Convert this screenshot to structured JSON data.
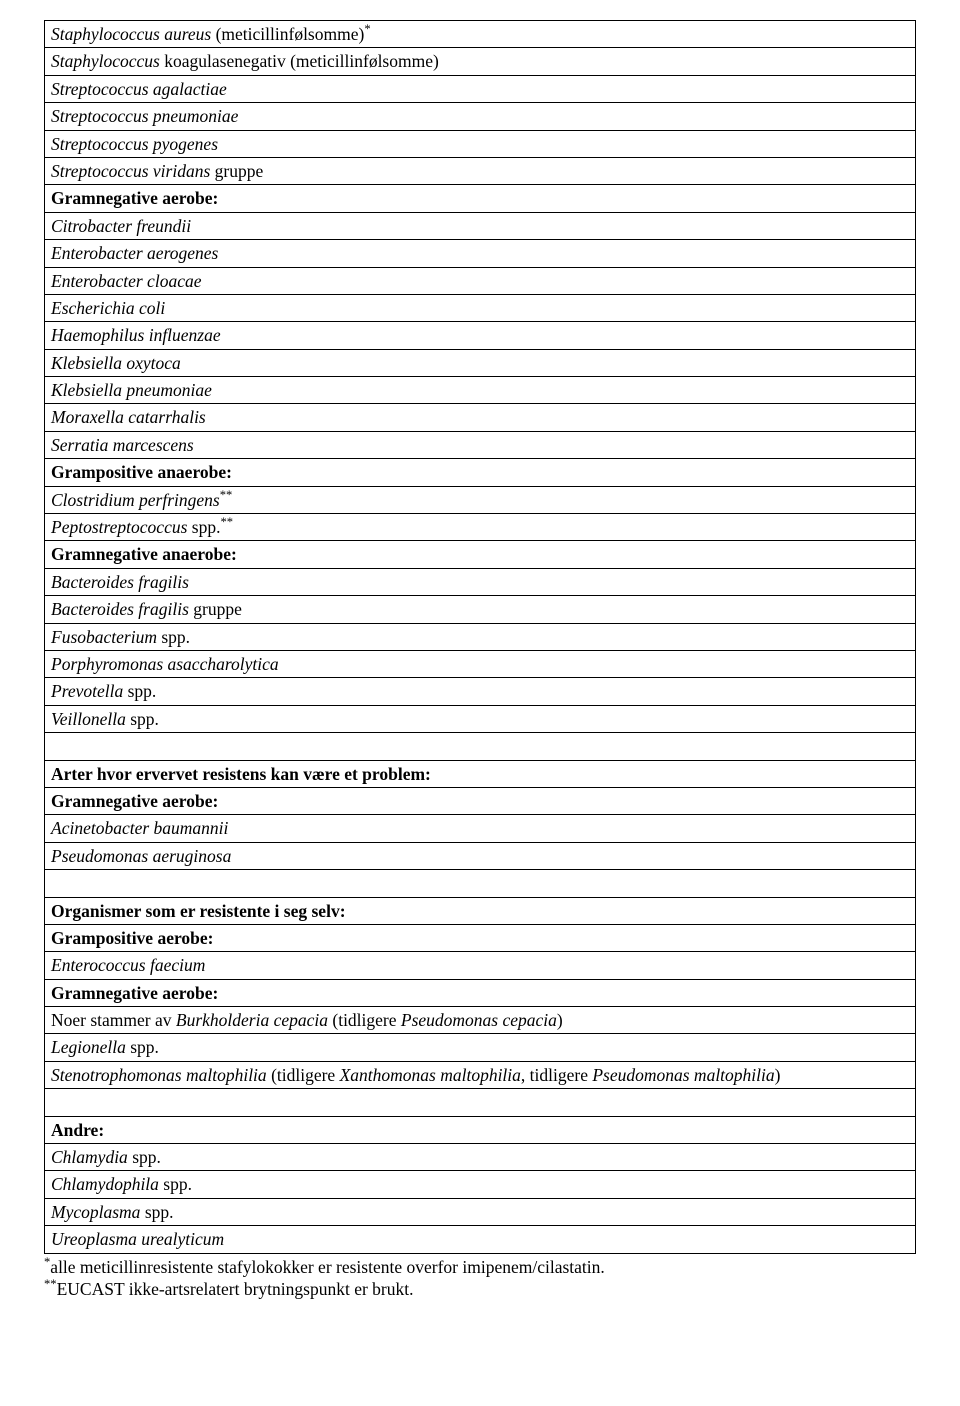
{
  "table": {
    "rows": [
      {
        "type": "indent",
        "segments": [
          {
            "t": "Staphylococcus aureus ",
            "i": true
          },
          {
            "t": "(meticillinfølsomme)"
          },
          {
            "t": "*",
            "sup": true
          }
        ]
      },
      {
        "type": "indent",
        "segments": [
          {
            "t": "Staphylococcus ",
            "i": true
          },
          {
            "t": "koagulasenegativ (meticillinfølsomme)"
          }
        ]
      },
      {
        "type": "indent",
        "segments": [
          {
            "t": "Streptococcus agalactiae",
            "i": true
          }
        ]
      },
      {
        "type": "indent",
        "segments": [
          {
            "t": "Streptococcus pneumoniae",
            "i": true
          }
        ]
      },
      {
        "type": "indent",
        "segments": [
          {
            "t": "Streptococcus pyogenes",
            "i": true
          }
        ]
      },
      {
        "type": "indent",
        "segments": [
          {
            "t": "Streptococcus viridans ",
            "i": true
          },
          {
            "t": "gruppe"
          }
        ]
      },
      {
        "type": "header",
        "segments": [
          {
            "t": "Gramnegative aerobe:"
          }
        ]
      },
      {
        "type": "indent",
        "segments": [
          {
            "t": "Citrobacter freundii",
            "i": true
          }
        ]
      },
      {
        "type": "indent",
        "segments": [
          {
            "t": "Enterobacter aerogenes",
            "i": true
          }
        ]
      },
      {
        "type": "indent",
        "segments": [
          {
            "t": "Enterobacter cloacae",
            "i": true
          }
        ]
      },
      {
        "type": "indent",
        "segments": [
          {
            "t": "Escherichia coli",
            "i": true
          }
        ]
      },
      {
        "type": "indent",
        "segments": [
          {
            "t": "Haemophilus influenzae",
            "i": true
          }
        ]
      },
      {
        "type": "indent",
        "segments": [
          {
            "t": "Klebsiella oxytoca",
            "i": true
          }
        ]
      },
      {
        "type": "indent",
        "segments": [
          {
            "t": "Klebsiella pneumoniae",
            "i": true
          }
        ]
      },
      {
        "type": "indent",
        "segments": [
          {
            "t": "Moraxella catarrhalis",
            "i": true
          }
        ]
      },
      {
        "type": "indent",
        "segments": [
          {
            "t": "Serratia marcescens",
            "i": true
          }
        ]
      },
      {
        "type": "header",
        "segments": [
          {
            "t": "Grampositive anaerobe:"
          }
        ]
      },
      {
        "type": "indent",
        "segments": [
          {
            "t": "Clostridium perfringens",
            "i": true
          },
          {
            "t": "**",
            "sup": true
          }
        ]
      },
      {
        "type": "indent",
        "segments": [
          {
            "t": "Peptostreptococcus ",
            "i": true
          },
          {
            "t": "spp."
          },
          {
            "t": "**",
            "sup": true
          }
        ]
      },
      {
        "type": "header",
        "segments": [
          {
            "t": "Gramnegative anaerobe:"
          }
        ]
      },
      {
        "type": "indent",
        "segments": [
          {
            "t": "Bacteroides fragilis",
            "i": true
          }
        ]
      },
      {
        "type": "indent",
        "segments": [
          {
            "t": "Bacteroides fragilis ",
            "i": true
          },
          {
            "t": "gruppe"
          }
        ]
      },
      {
        "type": "indent",
        "segments": [
          {
            "t": "Fusobacterium ",
            "i": true
          },
          {
            "t": "spp."
          }
        ]
      },
      {
        "type": "indent",
        "segments": [
          {
            "t": "Porphyromonas asaccharolytica",
            "i": true
          }
        ]
      },
      {
        "type": "indent",
        "segments": [
          {
            "t": "Prevotella ",
            "i": true
          },
          {
            "t": "spp."
          }
        ]
      },
      {
        "type": "indent",
        "segments": [
          {
            "t": "Veillonella ",
            "i": true
          },
          {
            "t": "spp."
          }
        ]
      },
      {
        "type": "spacer"
      },
      {
        "type": "header",
        "segments": [
          {
            "t": "Arter hvor ervervet resistens kan være et problem:"
          }
        ]
      },
      {
        "type": "header",
        "segments": [
          {
            "t": "Gramnegative aerobe:"
          }
        ]
      },
      {
        "type": "indent",
        "segments": [
          {
            "t": "Acinetobacter baumannii",
            "i": true
          }
        ]
      },
      {
        "type": "indent",
        "segments": [
          {
            "t": "Pseudomonas aeruginosa",
            "i": true
          }
        ]
      },
      {
        "type": "spacer"
      },
      {
        "type": "header",
        "segments": [
          {
            "t": "Organismer som er resistente i seg selv:"
          }
        ]
      },
      {
        "type": "header",
        "segments": [
          {
            "t": "Grampositive aerobe:"
          }
        ]
      },
      {
        "type": "indent",
        "segments": [
          {
            "t": "Enterococcus faecium",
            "i": true
          }
        ]
      },
      {
        "type": "header",
        "segments": [
          {
            "t": "Gramnegative aerobe:"
          }
        ]
      },
      {
        "type": "indent",
        "segments": [
          {
            "t": "Noer stammer av "
          },
          {
            "t": "Burkholderia cepacia ",
            "i": true
          },
          {
            "t": "(tidligere "
          },
          {
            "t": "Pseudomonas cepacia",
            "i": true
          },
          {
            "t": ")"
          }
        ]
      },
      {
        "type": "indent",
        "segments": [
          {
            "t": "Legionella ",
            "i": true
          },
          {
            "t": "spp."
          }
        ]
      },
      {
        "type": "indent",
        "segments": [
          {
            "t": "Stenotrophomonas maltophilia ",
            "i": true
          },
          {
            "t": "(tidligere "
          },
          {
            "t": "Xanthomonas maltophilia",
            "i": true
          },
          {
            "t": ", tidligere "
          },
          {
            "t": "Pseudomonas maltophilia",
            "i": true
          },
          {
            "t": ")"
          }
        ]
      },
      {
        "type": "spacer"
      },
      {
        "type": "header",
        "segments": [
          {
            "t": "Andre:"
          }
        ]
      },
      {
        "type": "indent",
        "segments": [
          {
            "t": "Chlamydia ",
            "i": true
          },
          {
            "t": "spp."
          }
        ]
      },
      {
        "type": "indent",
        "segments": [
          {
            "t": "Chlamydophila ",
            "i": true
          },
          {
            "t": "spp."
          }
        ]
      },
      {
        "type": "indent",
        "segments": [
          {
            "t": "Mycoplasma ",
            "i": true
          },
          {
            "t": "spp."
          }
        ]
      },
      {
        "type": "indent",
        "segments": [
          {
            "t": "Ureoplasma urealyticum",
            "i": true
          }
        ]
      }
    ]
  },
  "footnotes": [
    {
      "segments": [
        {
          "t": "*",
          "sup": true
        },
        {
          "t": "alle meticillinresistente stafylokokker er resistente overfor imipenem/cilastatin."
        }
      ]
    },
    {
      "segments": [
        {
          "t": "**",
          "sup": true
        },
        {
          "t": "EUCAST ikke-artsrelatert brytningspunkt er brukt."
        }
      ]
    }
  ]
}
